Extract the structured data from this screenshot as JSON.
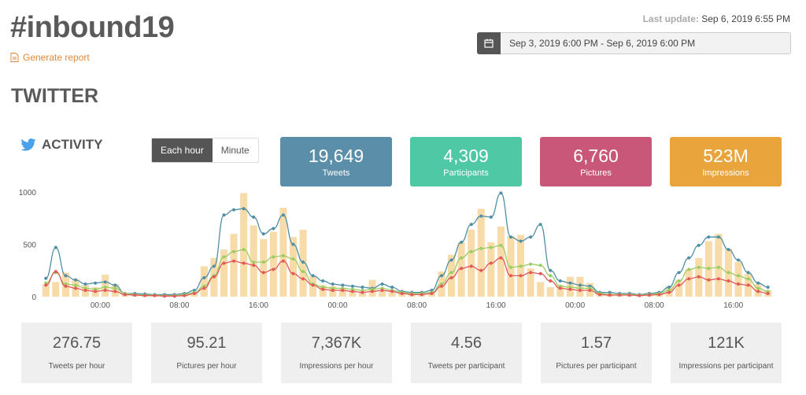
{
  "header": {
    "title": "#inbound19",
    "report_label": "Generate report",
    "last_update_label": "Last update:",
    "last_update_value": "Sep 6, 2019 6:55 PM",
    "date_range": "Sep 3, 2019 6:00 PM - Sep 6, 2019 6:00 PM"
  },
  "section_title": "TWITTER",
  "activity": {
    "title": "ACTIVITY",
    "toggle": [
      "Each hour",
      "Minute"
    ],
    "selected": "Each hour"
  },
  "stats": [
    {
      "value": "19,649",
      "label": "Tweets",
      "color": "#5b8ea8"
    },
    {
      "value": "4,309",
      "label": "Participants",
      "color": "#4fc9a5"
    },
    {
      "value": "6,760",
      "label": "Pictures",
      "color": "#c95779"
    },
    {
      "value": "523M",
      "label": "Impressions",
      "color": "#e9a53c"
    }
  ],
  "metrics": [
    {
      "value": "276.75",
      "label": "Tweets per hour"
    },
    {
      "value": "95.21",
      "label": "Pictures per hour"
    },
    {
      "value": "7,367K",
      "label": "Impressions per hour"
    },
    {
      "value": "4.56",
      "label": "Tweets per participant"
    },
    {
      "value": "1.57",
      "label": "Pictures per participant"
    },
    {
      "value": "121K",
      "label": "Impressions per participant"
    }
  ],
  "chart_data": {
    "type": "bar",
    "ylim": [
      0,
      1000
    ],
    "y_ticks": [
      "0",
      "500",
      "1000"
    ],
    "x_ticks": [
      {
        "label": "00:00",
        "hour": 6
      },
      {
        "label": "08:00",
        "hour": 14
      },
      {
        "label": "16:00",
        "hour": 22
      },
      {
        "label": "00:00",
        "hour": 30
      },
      {
        "label": "08:00",
        "hour": 38
      },
      {
        "label": "16:00",
        "hour": 46
      },
      {
        "label": "00:00",
        "hour": 54
      },
      {
        "label": "08:00",
        "hour": 62
      },
      {
        "label": "16:00",
        "hour": 70
      }
    ],
    "bar_color": "#f7dba9",
    "bars": [
      120,
      140,
      230,
      170,
      110,
      90,
      210,
      120,
      30,
      20,
      15,
      15,
      10,
      10,
      20,
      30,
      290,
      370,
      450,
      600,
      990,
      680,
      550,
      620,
      850,
      570,
      640,
      200,
      110,
      100,
      75,
      60,
      50,
      160,
      60,
      40,
      30,
      20,
      20,
      30,
      240,
      400,
      520,
      640,
      840,
      520,
      670,
      580,
      590,
      270,
      140,
      90,
      110,
      190,
      190,
      130,
      40,
      30,
      20,
      20,
      15,
      20,
      30,
      100,
      160,
      260,
      370,
      530,
      600,
      460,
      330,
      220,
      120,
      60
    ],
    "series": [
      {
        "color": "#4f8fa5",
        "values": [
          175,
          470,
          200,
          160,
          120,
          130,
          140,
          110,
          30,
          30,
          25,
          20,
          20,
          20,
          30,
          60,
          180,
          290,
          780,
          830,
          840,
          760,
          600,
          650,
          780,
          500,
          330,
          200,
          150,
          120,
          110,
          100,
          90,
          80,
          120,
          90,
          50,
          40,
          40,
          60,
          200,
          350,
          520,
          690,
          770,
          760,
          990,
          570,
          530,
          570,
          690,
          250,
          150,
          130,
          110,
          100,
          40,
          40,
          30,
          30,
          20,
          30,
          40,
          90,
          230,
          370,
          490,
          570,
          570,
          450,
          350,
          230,
          130,
          90
        ]
      },
      {
        "color": "#9ccd63",
        "values": [
          130,
          230,
          120,
          110,
          80,
          70,
          90,
          80,
          30,
          20,
          15,
          15,
          10,
          10,
          20,
          40,
          100,
          200,
          380,
          430,
          450,
          330,
          330,
          380,
          390,
          360,
          240,
          120,
          90,
          80,
          80,
          70,
          60,
          70,
          80,
          60,
          40,
          30,
          30,
          40,
          120,
          230,
          370,
          430,
          460,
          470,
          490,
          280,
          290,
          310,
          300,
          200,
          100,
          90,
          80,
          80,
          30,
          20,
          20,
          20,
          15,
          20,
          30,
          60,
          150,
          260,
          280,
          270,
          280,
          230,
          200,
          170,
          80,
          50
        ]
      },
      {
        "color": "#e05a5a",
        "values": [
          110,
          240,
          100,
          80,
          60,
          50,
          60,
          50,
          20,
          15,
          10,
          10,
          5,
          5,
          10,
          30,
          80,
          190,
          320,
          340,
          320,
          300,
          230,
          260,
          340,
          220,
          170,
          110,
          70,
          60,
          60,
          50,
          40,
          50,
          60,
          50,
          30,
          20,
          20,
          30,
          100,
          180,
          270,
          290,
          250,
          320,
          370,
          200,
          200,
          230,
          220,
          150,
          80,
          70,
          60,
          60,
          20,
          15,
          15,
          15,
          10,
          15,
          20,
          40,
          110,
          170,
          190,
          160,
          170,
          150,
          120,
          110,
          50,
          30
        ]
      }
    ]
  }
}
